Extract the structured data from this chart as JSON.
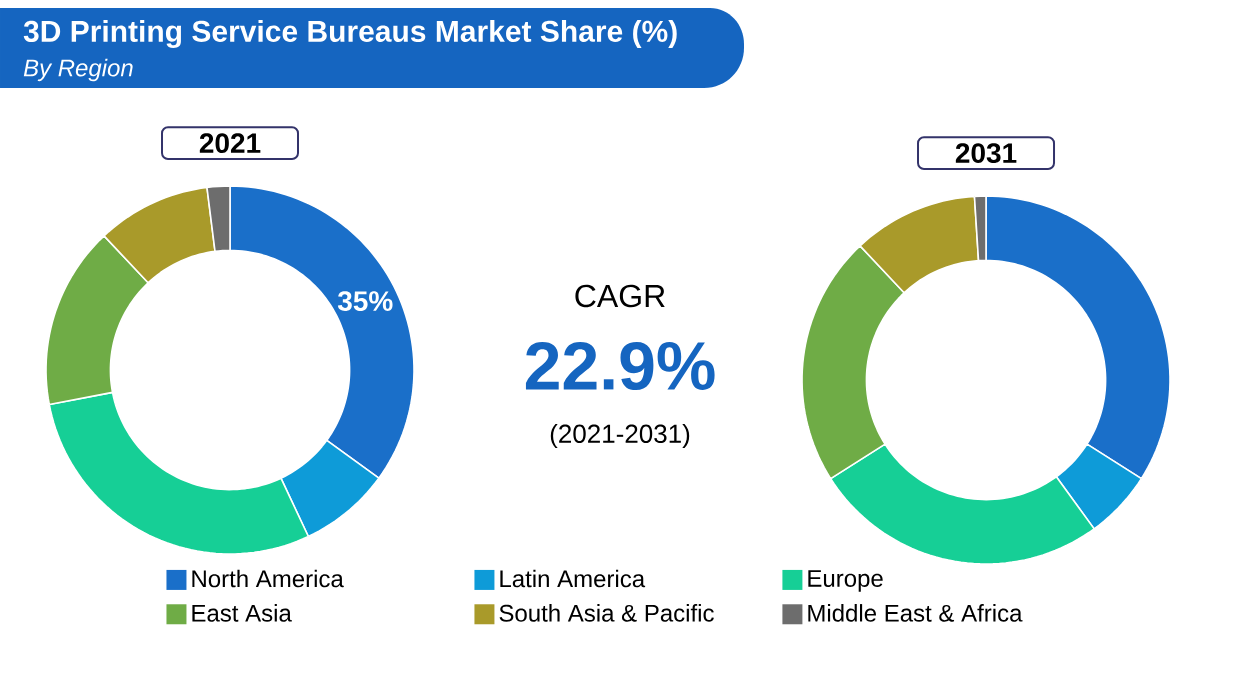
{
  "chart_data": [
    {
      "type": "other",
      "title": "3D Printing Service Bureaus Market Share (%)",
      "subtitle": "By Region",
      "annotations": [
        "CAGR",
        "22.9%",
        "(2021-2031)"
      ]
    },
    {
      "type": "donut",
      "title": "2021",
      "categories": [
        "North America",
        "Latin America",
        "Europe",
        "East Asia",
        "South Asia & Pacific",
        "Middle East & Africa"
      ],
      "values": [
        35,
        8,
        29,
        16,
        10,
        2
      ],
      "colors": [
        "#1a6fc9",
        "#0e9bd8",
        "#16cf96",
        "#6fac46",
        "#a99a2a",
        "#6d6d6d"
      ],
      "value_labels": [
        "35%",
        null,
        null,
        null,
        null,
        null
      ],
      "legend": "bottom"
    },
    {
      "type": "donut",
      "title": "2031",
      "categories": [
        null,
        null,
        null,
        null,
        null,
        null
      ],
      "values": [
        34,
        6,
        26,
        22,
        11,
        1
      ],
      "colors": [
        "#1a6fc9",
        "#0e9bd8",
        "#16cf96",
        "#6fac46",
        "#a99a2a",
        "#6d6d6d"
      ]
    }
  ]
}
